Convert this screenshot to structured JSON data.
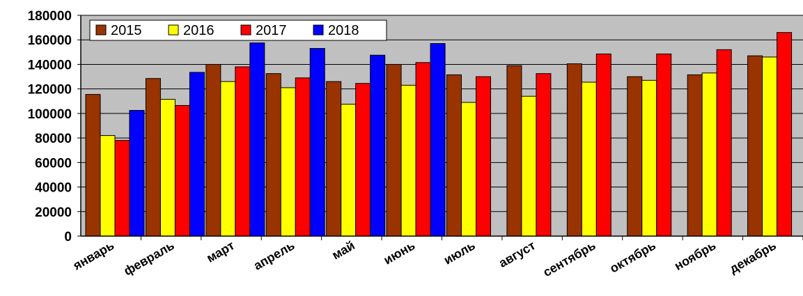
{
  "chart_data": {
    "type": "bar",
    "categories": [
      "январь",
      "февраль",
      "март",
      "апрель",
      "май",
      "июнь",
      "июль",
      "август",
      "сентябрь",
      "октябрь",
      "ноябрь",
      "декабрь"
    ],
    "series": [
      {
        "name": "2015",
        "color": "#993300",
        "values": [
          115500,
          128500,
          140000,
          132500,
          126000,
          140000,
          131500,
          139000,
          140500,
          130000,
          131500,
          147000
        ]
      },
      {
        "name": "2016",
        "color": "#FFFF00",
        "values": [
          82000,
          111500,
          126000,
          121000,
          107500,
          123000,
          109000,
          114000,
          125500,
          127000,
          133000,
          146000
        ]
      },
      {
        "name": "2017",
        "color": "#FF0000",
        "values": [
          78000,
          106500,
          138000,
          129000,
          124500,
          141500,
          130000,
          132500,
          148500,
          148500,
          152000,
          166000
        ]
      },
      {
        "name": "2018",
        "color": "#0000FF",
        "values": [
          102500,
          133500,
          157500,
          153000,
          147500,
          157000,
          null,
          null,
          null,
          null,
          null,
          null
        ]
      }
    ],
    "yticks": [
      "0",
      "20000",
      "40000",
      "60000",
      "80000",
      "100000",
      "120000",
      "140000",
      "160000",
      "180000"
    ],
    "ylim": [
      0,
      180000
    ],
    "grid": true,
    "legend_position": "top-left",
    "plot_background": "#C0C0C0",
    "title": "",
    "xlabel": "",
    "ylabel": ""
  }
}
